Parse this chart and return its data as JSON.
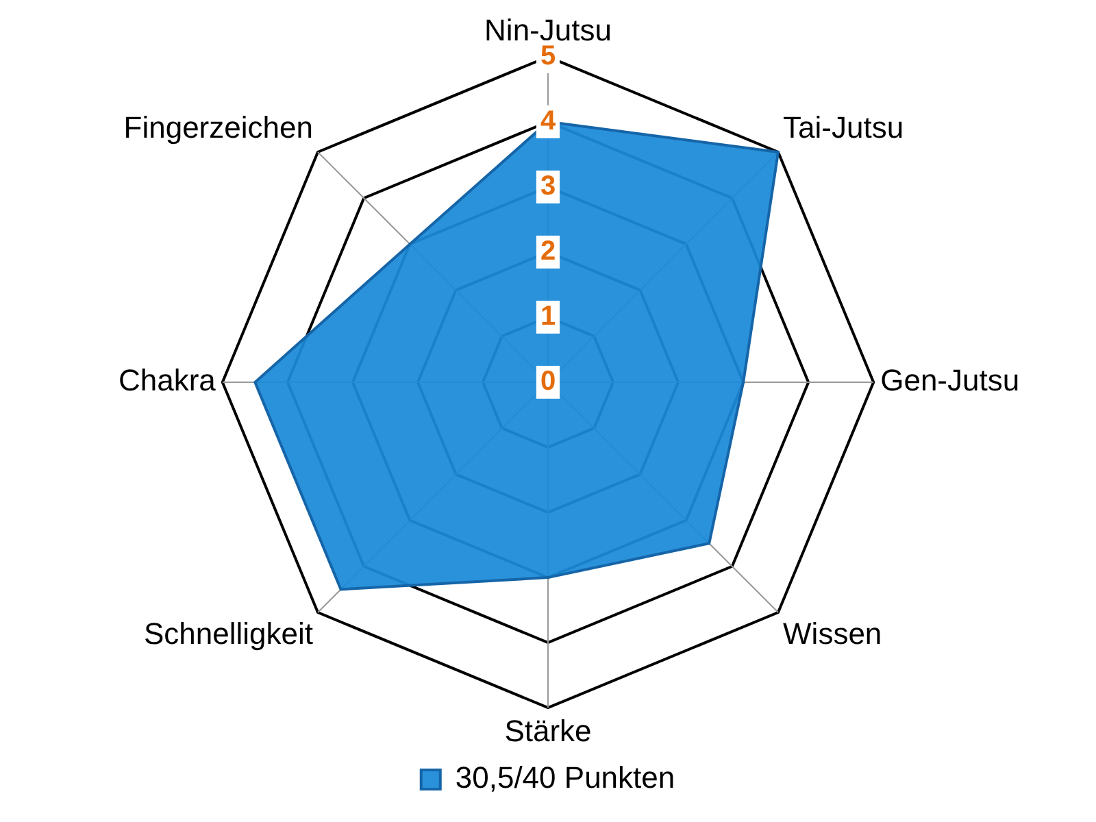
{
  "chart_data": {
    "type": "radar",
    "categories": [
      "Nin-Jutsu",
      "Tai-Jutsu",
      "Gen-Jutsu",
      "Wissen",
      "Stärke",
      "Schnelligkeit",
      "Chakra",
      "Fingerzeichen"
    ],
    "series": [
      {
        "name": "30,5/40 Punkten",
        "color": "#1b8ad8",
        "values": [
          4,
          5,
          3,
          3.5,
          3,
          4.5,
          4.5,
          3
        ]
      }
    ],
    "ylim": [
      0,
      5
    ],
    "yticks": [
      0,
      1,
      2,
      3,
      4,
      5
    ],
    "grid": true,
    "legend": "bottom"
  }
}
